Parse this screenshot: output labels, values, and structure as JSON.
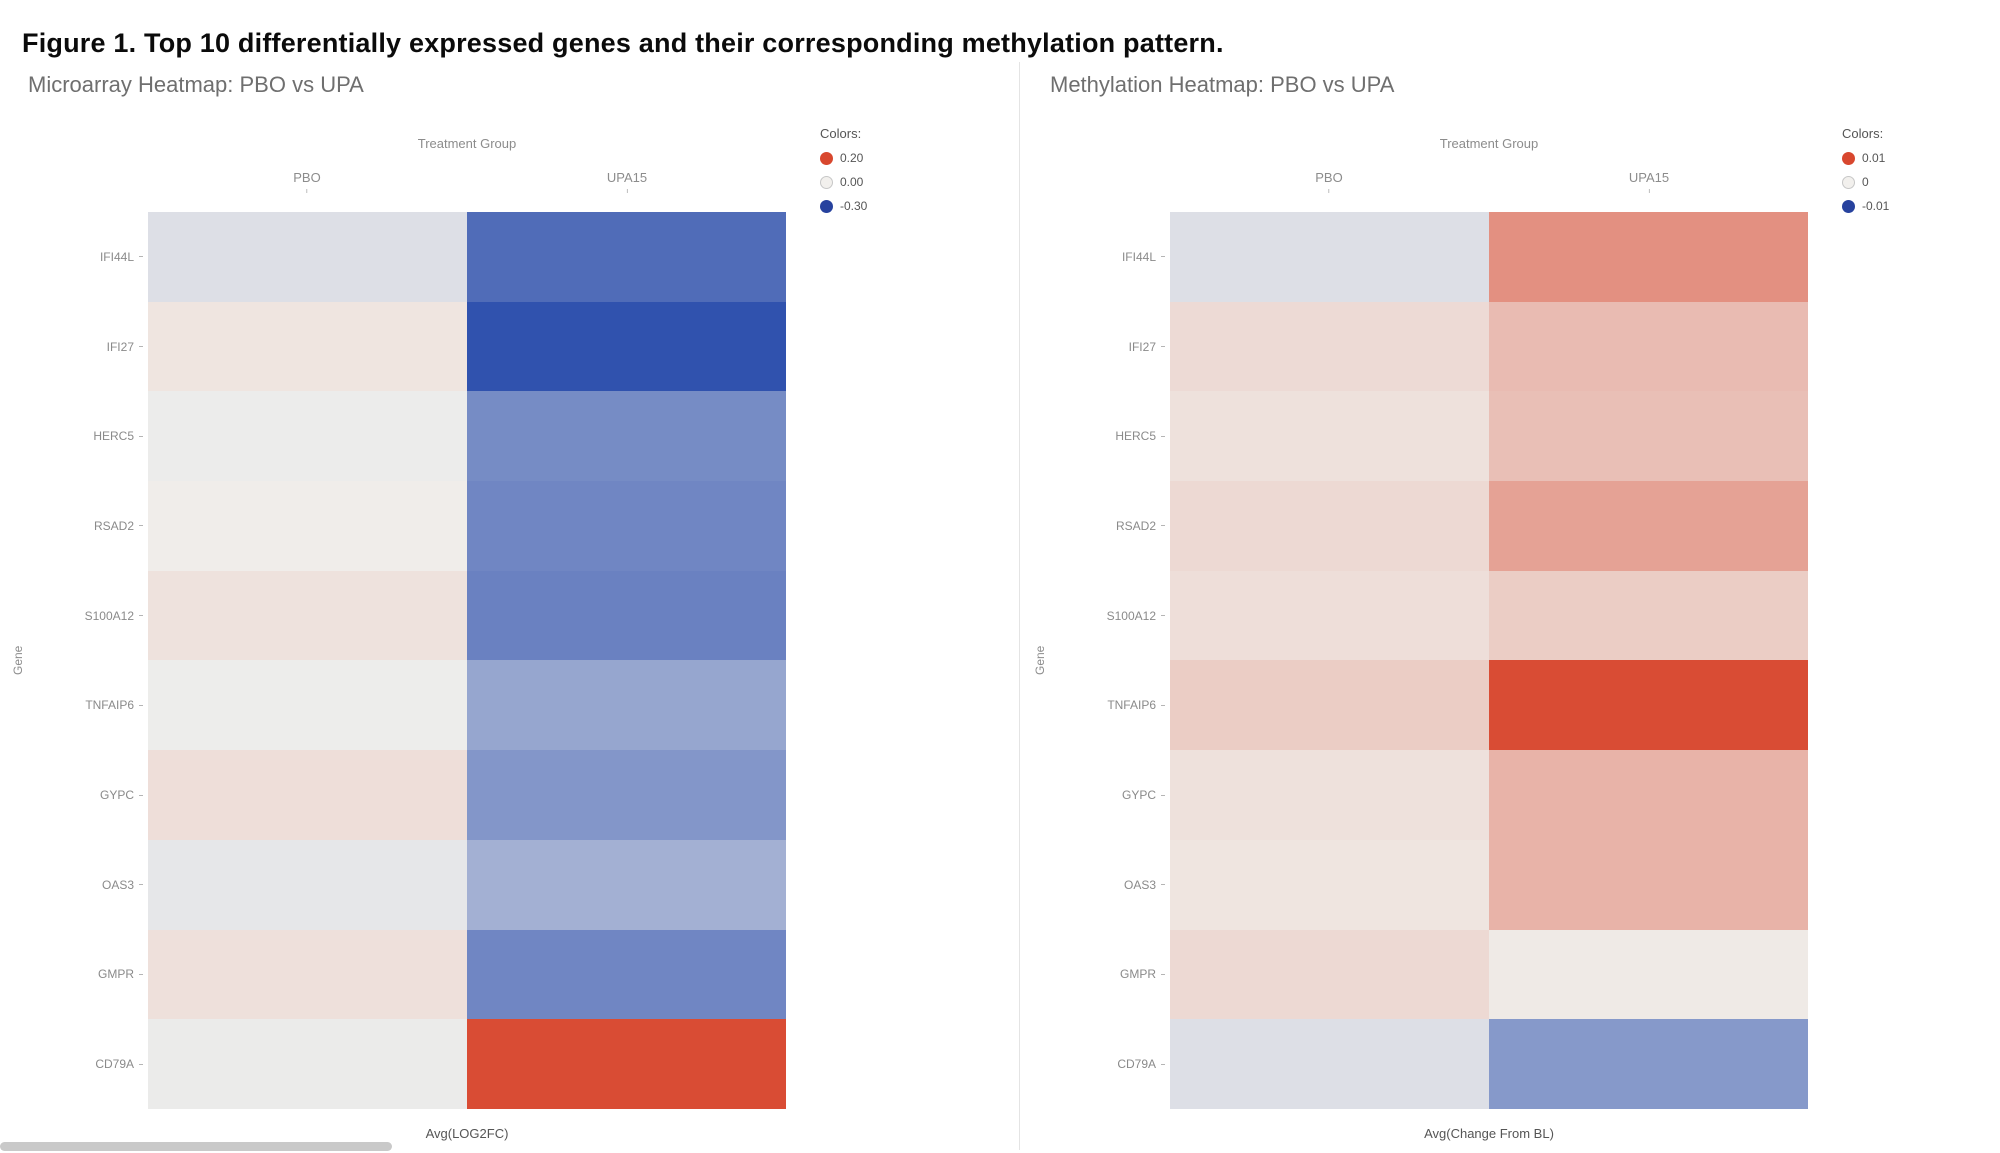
{
  "figure_title": "Figure 1. Top 10 differentially expressed genes and their corresponding methylation pattern.",
  "chart_data": [
    {
      "type": "heatmap",
      "title": "Microarray Heatmap: PBO vs UPA",
      "x_axis_title": "Treatment Group",
      "y_axis_title": "Gene",
      "columns": [
        "PBO",
        "UPA15"
      ],
      "genes": [
        "IFI44L",
        "IFI27",
        "HERC5",
        "RSAD2",
        "S100A12",
        "TNFAIP6",
        "GYPC",
        "OAS3",
        "GMPR",
        "CD79A"
      ],
      "value_label": "Avg(LOG2FC)",
      "legend": {
        "title": "Colors:",
        "entries": [
          {
            "label": "0.20",
            "color": "#d8472e"
          },
          {
            "label": "0.00",
            "color": "#f2f0ed"
          },
          {
            "label": "-0.30",
            "color": "#27429e"
          }
        ]
      },
      "colorscale": {
        "min": -0.3,
        "mid": 0,
        "max": 0.2,
        "min_color": "#3052ae",
        "mid_color": "#f0efec",
        "max_color": "#d8432a"
      },
      "series": [
        {
          "name": "PBO",
          "values": [
            -0.03,
            0.012,
            -0.006,
            0.002,
            0.015,
            -0.004,
            0.02,
            -0.015,
            0.018,
            -0.008
          ]
        },
        {
          "name": "UPA15",
          "values": [
            -0.25,
            -0.3,
            -0.19,
            -0.2,
            -0.21,
            -0.14,
            -0.17,
            -0.12,
            -0.2,
            0.19
          ]
        }
      ]
    },
    {
      "type": "heatmap",
      "title": "Methylation Heatmap: PBO vs UPA",
      "x_axis_title": "Treatment Group",
      "y_axis_title": "Gene",
      "columns": [
        "PBO",
        "UPA15"
      ],
      "genes": [
        "IFI44L",
        "IFI27",
        "HERC5",
        "RSAD2",
        "S100A12",
        "TNFAIP6",
        "GYPC",
        "OAS3",
        "GMPR",
        "CD79A"
      ],
      "value_label": "Avg(Change From BL)",
      "legend": {
        "title": "Colors:",
        "entries": [
          {
            "label": "0.01",
            "color": "#d8472e"
          },
          {
            "label": "0",
            "color": "#f2f0ed"
          },
          {
            "label": "-0.01",
            "color": "#27429e"
          }
        ]
      },
      "colorscale": {
        "min": -0.01,
        "mid": 0,
        "max": 0.01,
        "min_color": "#3052ae",
        "mid_color": "#f0efec",
        "max_color": "#d8432a"
      },
      "series": [
        {
          "name": "PBO",
          "values": [
            -0.001,
            0.0012,
            0.0008,
            0.0013,
            0.001,
            0.002,
            0.0008,
            0.0006,
            0.0013,
            -0.001
          ]
        },
        {
          "name": "UPA15",
          "values": [
            0.0055,
            0.003,
            0.0028,
            0.0045,
            0.002,
            0.0095,
            0.0035,
            0.0035,
            0.0003,
            -0.0055
          ]
        }
      ]
    }
  ]
}
